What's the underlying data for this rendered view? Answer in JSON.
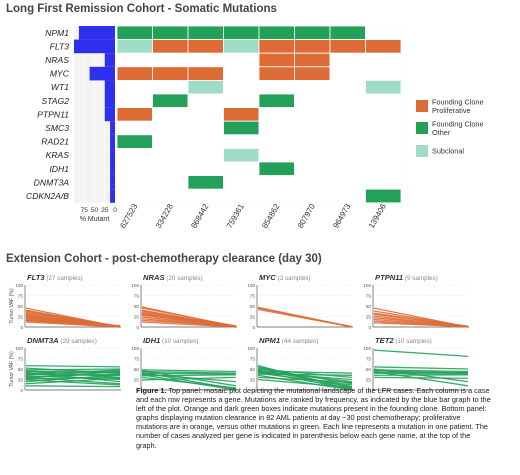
{
  "colors": {
    "founding_proliferative": "#de6b36",
    "founding_other": "#23a15a",
    "subclonal": "#9fdcc6",
    "bar": "#2f2ff0",
    "empty": "#ffffff",
    "line_proliferative": "#de6b36",
    "line_other": "#23a15a"
  },
  "chart_data": [
    {
      "type": "heatmap",
      "title": "Long First Remission Cohort - Somatic Mutations",
      "genes": [
        "NPM1",
        "FLT3",
        "NRAS",
        "MYC",
        "WT1",
        "STAG2",
        "PTPN11",
        "SMC3",
        "RAD21",
        "KRAS",
        "IDH1",
        "DNMT3A",
        "CDKN2A/B"
      ],
      "cases": [
        "627523",
        "334228",
        "868442",
        "759361",
        "854862",
        "807970",
        "964973",
        "139406"
      ],
      "cells": [
        [
          "O",
          "O",
          "O",
          "O",
          "O",
          "O",
          "O",
          ""
        ],
        [
          "S",
          "P",
          "P",
          "S",
          "P",
          "P",
          "P",
          "P"
        ],
        [
          "",
          "",
          "",
          "",
          "P",
          "P",
          "",
          ""
        ],
        [
          "P",
          "P",
          "P",
          "",
          "P",
          "P",
          "",
          ""
        ],
        [
          "",
          "",
          "S",
          "",
          "",
          "",
          "",
          "S"
        ],
        [
          "",
          "O",
          "",
          "",
          "O",
          "",
          "",
          ""
        ],
        [
          "P",
          "",
          "",
          "P",
          "",
          "",
          "",
          ""
        ],
        [
          "",
          "",
          "",
          "O",
          "",
          "",
          "",
          ""
        ],
        [
          "O",
          "",
          "",
          "",
          "",
          "",
          "",
          ""
        ],
        [
          "",
          "",
          "",
          "S",
          "",
          "",
          "",
          ""
        ],
        [
          "",
          "",
          "",
          "",
          "O",
          "",
          "",
          ""
        ],
        [
          "",
          "",
          "O",
          "",
          "",
          "",
          "",
          ""
        ],
        [
          "",
          "",
          "",
          "",
          "",
          "",
          "",
          "O"
        ]
      ],
      "legend": [
        {
          "code": "P",
          "label_lines": [
            "Founding Clone",
            "Proliferative"
          ]
        },
        {
          "code": "O",
          "label_lines": [
            "Founding Clone",
            "Other"
          ]
        },
        {
          "code": "S",
          "label_lines": [
            "Subclonal"
          ]
        }
      ]
    },
    {
      "type": "bar",
      "orientation": "horizontal",
      "xlabel": "% Mutant",
      "xticks": [
        75,
        50,
        25,
        0
      ],
      "xlim": [
        0,
        100
      ],
      "categories": [
        "NPM1",
        "FLT3",
        "NRAS",
        "MYC",
        "WT1",
        "STAG2",
        "PTPN11",
        "SMC3",
        "RAD21",
        "KRAS",
        "IDH1",
        "DNMT3A",
        "CDKN2A/B"
      ],
      "values": [
        88,
        100,
        25,
        62,
        25,
        25,
        25,
        12,
        12,
        12,
        12,
        12,
        12
      ]
    },
    {
      "type": "line",
      "title": "Extension Cohort - post-chemotherapy clearance (day 30)",
      "ylabel": "Tumor VAF (%)",
      "yticks": [
        0,
        25,
        50,
        75,
        100
      ],
      "ylim": [
        0,
        100
      ],
      "panels": [
        {
          "gene": "FLT3",
          "samples": "(27 samples)",
          "kind": "proliferative",
          "start": [
            45,
            40,
            38,
            35,
            33,
            30,
            28,
            26,
            24,
            22,
            20,
            18,
            16,
            15,
            12
          ],
          "end": [
            0,
            0,
            1,
            0,
            2,
            0,
            1,
            0,
            0,
            3,
            0,
            1,
            0,
            2,
            0
          ]
        },
        {
          "gene": "NRAS",
          "samples": "(20 samples)",
          "kind": "proliferative",
          "start": [
            48,
            45,
            40,
            38,
            35,
            32,
            30,
            28,
            24,
            20,
            16,
            12
          ],
          "end": [
            0,
            2,
            0,
            1,
            0,
            3,
            0,
            1,
            0,
            0,
            2,
            0
          ]
        },
        {
          "gene": "MYC",
          "samples": "(3 samples)",
          "kind": "proliferative",
          "start": [
            47,
            45,
            42
          ],
          "end": [
            0,
            1,
            0
          ]
        },
        {
          "gene": "PTPN11",
          "samples": "(9 samples)",
          "kind": "proliferative",
          "start": [
            45,
            38,
            33,
            30,
            26,
            22,
            18,
            14,
            10
          ],
          "end": [
            0,
            1,
            0,
            2,
            0,
            1,
            0,
            0,
            1
          ]
        },
        {
          "gene": "DNMT3A",
          "samples": "(29 samples)",
          "kind": "other",
          "start": [
            58,
            52,
            48,
            46,
            44,
            42,
            40,
            38,
            36,
            34,
            32,
            30,
            28,
            26,
            24,
            20,
            15,
            10
          ],
          "end": [
            55,
            40,
            50,
            30,
            45,
            20,
            42,
            35,
            48,
            25,
            38,
            15,
            44,
            30,
            12,
            36,
            28,
            8
          ]
        },
        {
          "gene": "IDH1",
          "samples": "(10 samples)",
          "kind": "other",
          "start": [
            48,
            46,
            44,
            42,
            40,
            38,
            36,
            34,
            30,
            24
          ],
          "end": [
            44,
            10,
            40,
            2,
            38,
            20,
            0,
            36,
            5,
            30
          ]
        },
        {
          "gene": "NPM1",
          "samples": "(44 samples)",
          "kind": "other",
          "start": [
            58,
            55,
            52,
            50,
            48,
            46,
            45,
            44,
            42,
            40,
            38,
            35,
            30,
            25
          ],
          "end": [
            0,
            5,
            15,
            30,
            8,
            20,
            40,
            2,
            25,
            12,
            35,
            0,
            18,
            6
          ]
        },
        {
          "gene": "TET2",
          "samples": "(10 samples)",
          "kind": "other",
          "start": [
            95,
            55,
            50,
            48,
            46,
            44,
            42,
            40,
            35,
            30
          ],
          "end": [
            80,
            50,
            20,
            44,
            40,
            10,
            42,
            38,
            36,
            28
          ]
        }
      ]
    }
  ],
  "caption": {
    "label": "Figure 1.",
    "text": " Top panel: mosaic plot depicting the mutational landscape of the LFR cases. Each column is a case and each row represents a gene. Mutations are ranked by frequency, as indicated by the blue bar graph to the left of the plot. Orange and dark green boxes indicate mutations present in the founding clone. Bottom panel:  graphs displaying mutation clearance in 82 AML patients at day ~30 post chemotherapy; proliferative mutations are in orange, versus other mutations in green. Each line represents a mutation in one patient. The number of cases analyzed per gene is indicated in parenthesis below each gene name, at the top of the graph."
  }
}
